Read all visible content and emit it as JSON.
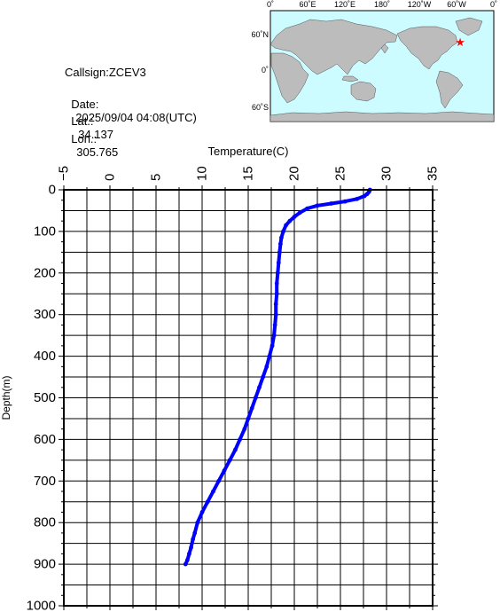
{
  "info": {
    "callsign": "Callsign:ZCEV3",
    "date_label": "Date:",
    "date_value": "2025/09/04 04:08(UTC)",
    "lat_label": "Lat.:",
    "lat_value": "34.137",
    "lon_label": "Lon.:",
    "lon_value": "305.765"
  },
  "map": {
    "top_ticks": [
      "0˚",
      "60˚E",
      "120˚E",
      "180˚",
      "120˚W",
      "60˚W",
      "0˚"
    ],
    "lat_ticks": [
      "60˚N",
      "0˚",
      "60˚S"
    ],
    "ocean_color": "#ccfcff",
    "land_color": "#bcbcbc",
    "marker_color": "#ff0000",
    "marker_lon": 305.765,
    "marker_lat": 34.137
  },
  "chart_data": {
    "type": "line",
    "xlabel": "Temperature(C)",
    "ylabel": "Depth(m)",
    "xlim": [
      -5,
      35
    ],
    "ylim": [
      0,
      1000
    ],
    "x_ticks": [
      -5,
      0,
      5,
      10,
      15,
      20,
      25,
      30,
      35
    ],
    "y_ticks": [
      0,
      100,
      200,
      300,
      400,
      500,
      600,
      700,
      800,
      900,
      1000
    ],
    "grid": true,
    "series_color": "#0000ff",
    "series": [
      {
        "temperature": [
          28.2,
          28.1,
          27.9,
          27.6,
          26.8,
          25.5,
          24.0,
          22.5,
          21.4,
          20.6,
          20.0,
          19.5,
          19.1,
          18.8,
          18.6,
          18.5,
          18.4,
          18.3,
          18.2,
          18.1,
          18.1,
          18.0,
          18.0,
          17.9,
          17.8,
          17.6,
          17.3,
          17.0,
          16.6,
          16.2,
          15.8,
          15.4,
          15.0,
          14.6,
          14.1,
          13.6,
          13.0,
          12.4,
          11.8,
          11.2,
          10.6,
          10.0,
          9.5,
          9.2,
          9.0,
          8.8,
          8.6,
          8.4,
          8.2
        ],
        "depth": [
          0,
          5,
          10,
          15,
          22,
          28,
          33,
          38,
          45,
          55,
          65,
          75,
          85,
          100,
          115,
          130,
          150,
          175,
          200,
          225,
          250,
          275,
          300,
          325,
          350,
          375,
          400,
          425,
          450,
          475,
          500,
          525,
          550,
          575,
          600,
          625,
          650,
          675,
          700,
          725,
          750,
          775,
          800,
          825,
          840,
          860,
          875,
          890,
          900
        ]
      }
    ]
  }
}
